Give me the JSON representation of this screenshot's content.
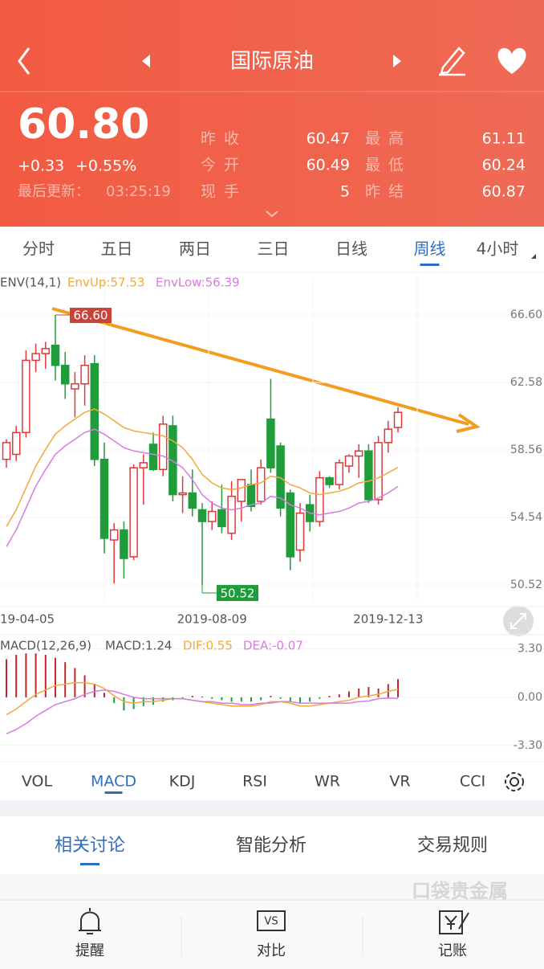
{
  "header": {
    "title": "国际原油"
  },
  "quote": {
    "price": "60.80",
    "change": "+0.33",
    "change_pct": "+0.55%",
    "updated_label": "最后更新：",
    "updated_time": "03:25:19",
    "stats": [
      {
        "label": "昨 收",
        "value": "60.47"
      },
      {
        "label": "最 高",
        "value": "61.11"
      },
      {
        "label": "今 开",
        "value": "60.49"
      },
      {
        "label": "最 低",
        "value": "60.24"
      },
      {
        "label": "现 手",
        "value": "5"
      },
      {
        "label": "昨 结",
        "value": "60.87"
      }
    ]
  },
  "period_tabs": [
    "分时",
    "五日",
    "两日",
    "三日",
    "日线",
    "周线",
    "4小时"
  ],
  "chart_data": {
    "type": "candlestick",
    "legend": [
      "ENV(14,1)",
      "EnvUp:57.53",
      "EnvLow:56.39"
    ],
    "high_label": "66.60",
    "low_label": "50.52",
    "categories": [
      null,
      null,
      null,
      "19-04-05",
      null,
      null,
      null,
      null,
      null,
      null,
      null,
      null,
      null,
      null,
      null,
      null,
      null,
      null,
      null,
      null,
      null,
      "2019-08-09",
      null,
      null,
      null,
      null,
      null,
      null,
      null,
      null,
      null,
      null,
      null,
      null,
      null,
      null,
      null,
      null,
      null,
      "2019-12-13",
      null
    ],
    "up_color": "#e0383a",
    "down_color": "#1f9d3a",
    "ohlc": [
      [
        58.0,
        59.2,
        57.5,
        59.0
      ],
      [
        58.3,
        60.0,
        57.9,
        59.6
      ],
      [
        59.6,
        64.5,
        59.3,
        63.9
      ],
      [
        63.9,
        64.9,
        63.2,
        64.3
      ],
      [
        64.3,
        65.0,
        63.4,
        64.6
      ],
      [
        64.8,
        66.6,
        62.7,
        63.6
      ],
      [
        63.6,
        64.4,
        61.6,
        62.5
      ],
      [
        62.2,
        63.2,
        60.5,
        62.5
      ],
      [
        62.5,
        64.2,
        61.2,
        63.6
      ],
      [
        63.7,
        64.2,
        57.6,
        58.0
      ],
      [
        58.0,
        59.0,
        52.4,
        53.3
      ],
      [
        53.2,
        54.2,
        50.6,
        53.8
      ],
      [
        53.8,
        54.3,
        50.9,
        52.1
      ],
      [
        52.2,
        57.7,
        52.0,
        57.5
      ],
      [
        57.5,
        58.3,
        55.3,
        57.8
      ],
      [
        58.9,
        59.6,
        57.3,
        57.4
      ],
      [
        57.4,
        60.6,
        57.0,
        60.1
      ],
      [
        60.0,
        60.6,
        55.5,
        55.9
      ],
      [
        55.9,
        57.0,
        54.8,
        56.0
      ],
      [
        56.0,
        57.4,
        54.6,
        55.1
      ],
      [
        55.0,
        55.4,
        50.52,
        54.3
      ],
      [
        54.3,
        55.5,
        53.8,
        54.9
      ],
      [
        55.0,
        56.5,
        53.6,
        54.0
      ],
      [
        53.6,
        56.7,
        53.2,
        55.8
      ],
      [
        55.5,
        56.8,
        54.3,
        56.8
      ],
      [
        56.5,
        57.4,
        54.9,
        55.2
      ],
      [
        55.5,
        58.0,
        55.3,
        57.5
      ],
      [
        60.4,
        62.8,
        57.2,
        57.5
      ],
      [
        58.8,
        59.0,
        54.6,
        55.1
      ],
      [
        56.0,
        56.2,
        51.4,
        52.2
      ],
      [
        52.6,
        55.4,
        51.9,
        54.8
      ],
      [
        55.3,
        55.9,
        53.7,
        54.3
      ],
      [
        54.3,
        57.3,
        54.0,
        56.9
      ],
      [
        56.9,
        57.0,
        56.3,
        56.5
      ],
      [
        56.5,
        58.0,
        56.2,
        57.8
      ],
      [
        57.6,
        58.3,
        57.2,
        58.2
      ],
      [
        58.2,
        58.9,
        56.9,
        58.5
      ],
      [
        58.5,
        58.9,
        55.4,
        55.6
      ],
      [
        55.6,
        59.4,
        55.3,
        59.0
      ],
      [
        59.0,
        60.3,
        58.4,
        59.8
      ],
      [
        59.9,
        61.11,
        59.6,
        60.8
      ]
    ],
    "series": [
      {
        "name": "EnvUp",
        "color": "#f2a93b",
        "values": [
          54.0,
          55.0,
          56.3,
          57.6,
          58.6,
          59.5,
          60.0,
          60.4,
          60.8,
          61.0,
          60.7,
          60.3,
          59.9,
          59.7,
          59.6,
          59.5,
          59.4,
          59.1,
          58.7,
          58.0,
          57.1,
          56.6,
          56.3,
          56.2,
          56.3,
          56.5,
          56.6,
          57.0,
          56.9,
          56.5,
          56.3,
          56.0,
          55.9,
          56.0,
          56.1,
          56.3,
          56.6,
          56.7,
          56.9,
          57.2,
          57.53
        ]
      },
      {
        "name": "EnvLow",
        "color": "#d77be0",
        "values": [
          52.8,
          53.8,
          55.1,
          56.4,
          57.4,
          58.3,
          58.8,
          59.2,
          59.6,
          59.8,
          59.5,
          59.1,
          58.7,
          58.5,
          58.4,
          58.3,
          58.2,
          57.9,
          57.5,
          56.8,
          55.9,
          55.4,
          55.1,
          55.0,
          55.1,
          55.3,
          55.4,
          55.8,
          55.7,
          55.3,
          55.1,
          54.8,
          54.7,
          54.8,
          54.9,
          55.1,
          55.4,
          55.5,
          55.7,
          56.0,
          56.39
        ]
      }
    ],
    "ylim": [
      49.47,
      68.85
    ],
    "yticks": [
      {
        "value": 66.6,
        "label": "66.60"
      },
      {
        "value": 62.58,
        "label": "62.58"
      },
      {
        "value": 58.56,
        "label": "58.56"
      },
      {
        "value": 54.54,
        "label": "54.54"
      },
      {
        "value": 50.52,
        "label": "50.52"
      }
    ]
  },
  "macd_data": {
    "type": "bar",
    "legend": [
      "MACD(12,26,9)",
      "MACD:1.24",
      "DIF:0.55",
      "DEA:-0.07"
    ],
    "up_color": "#c0272d",
    "down_color": "#1f9d3a",
    "values": [
      2.6,
      2.9,
      3.0,
      3.0,
      2.9,
      2.7,
      2.4,
      2.0,
      1.5,
      0.9,
      0.3,
      -0.4,
      -0.9,
      -0.8,
      -0.6,
      -0.5,
      -0.3,
      -0.2,
      -0.1,
      0.1,
      0.05,
      -0.1,
      -0.2,
      -0.3,
      -0.3,
      -0.3,
      -0.2,
      0.1,
      -0.1,
      -0.3,
      -0.4,
      -0.3,
      -0.1,
      0.1,
      0.2,
      0.4,
      0.6,
      0.7,
      0.6,
      0.9,
      1.24
    ],
    "series": [
      {
        "name": "DIF",
        "color": "#f2a93b",
        "values": [
          -1.2,
          -0.8,
          -0.3,
          0.2,
          0.5,
          0.8,
          0.9,
          1.0,
          1.0,
          0.9,
          0.6,
          0.1,
          -0.3,
          -0.4,
          -0.3,
          -0.3,
          -0.2,
          -0.1,
          -0.1,
          -0.2,
          -0.3,
          -0.4,
          -0.5,
          -0.6,
          -0.6,
          -0.6,
          -0.5,
          -0.3,
          -0.3,
          -0.4,
          -0.6,
          -0.6,
          -0.5,
          -0.4,
          -0.3,
          -0.2,
          0.0,
          0.1,
          0.2,
          0.4,
          0.55
        ]
      },
      {
        "name": "DEA",
        "color": "#d77be0",
        "values": [
          -2.5,
          -2.2,
          -1.8,
          -1.3,
          -0.9,
          -0.5,
          -0.3,
          -0.1,
          0.2,
          0.4,
          0.5,
          0.4,
          0.2,
          0.0,
          -0.1,
          -0.1,
          -0.1,
          -0.1,
          -0.1,
          -0.2,
          -0.3,
          -0.3,
          -0.4,
          -0.4,
          -0.5,
          -0.5,
          -0.4,
          -0.4,
          -0.3,
          -0.3,
          -0.4,
          -0.4,
          -0.4,
          -0.4,
          -0.4,
          -0.4,
          -0.3,
          -0.25,
          -0.1,
          -0.05,
          -0.07
        ]
      }
    ],
    "ylim": [
      -4.24,
      4.0
    ],
    "yticks": [
      {
        "value": 3.3,
        "label": "3.30"
      },
      {
        "value": 0,
        "label": "0.00"
      },
      {
        "value": -3.3,
        "label": "-3.30"
      }
    ]
  },
  "indicator_tabs": [
    "VOL",
    "MACD",
    "KDJ",
    "RSI",
    "WR",
    "VR",
    "CCI"
  ],
  "section_tabs": [
    "相关讨论",
    "智能分析",
    "交易规则"
  ],
  "watermark": "口袋贵金属",
  "nav": [
    "提醒",
    "对比",
    "记账"
  ]
}
